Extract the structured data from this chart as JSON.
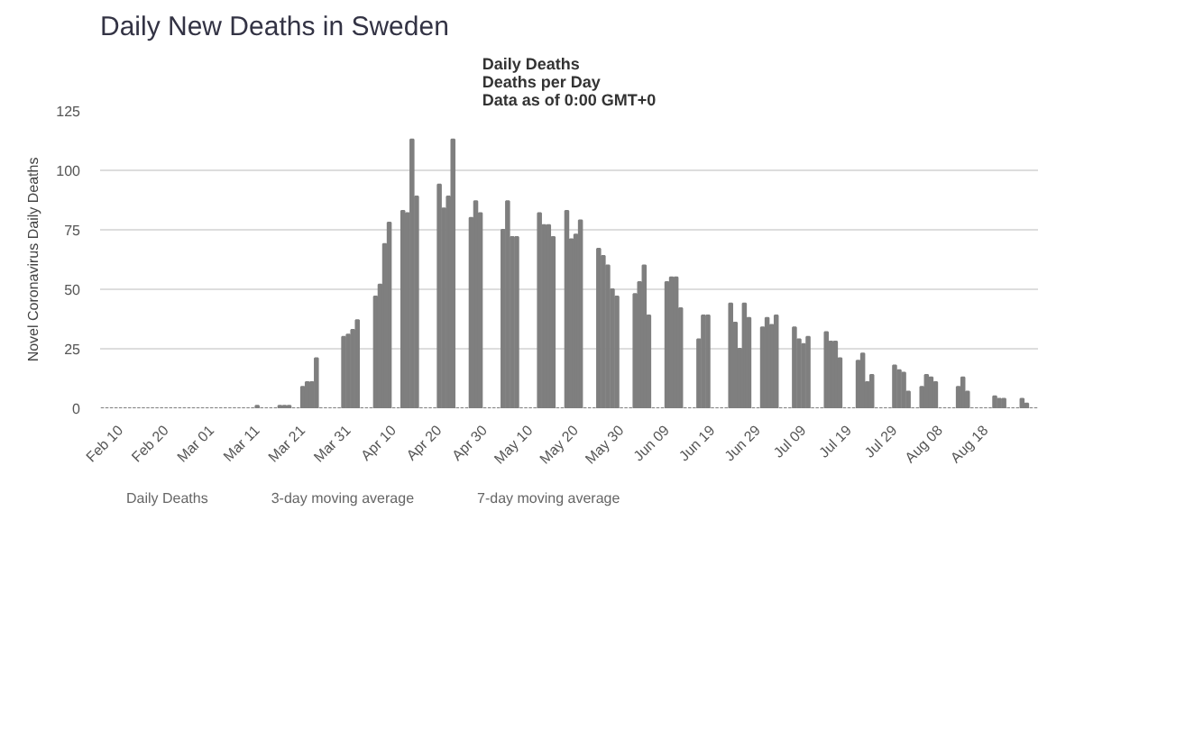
{
  "chart_data": {
    "type": "bar",
    "title": "Daily New Deaths in Sweden",
    "subtitle": "Daily Deaths\nDeaths per Day\nData as of 0:00 GMT+0",
    "ylabel": "Novel Coronavirus Daily Deaths",
    "categories": [
      null,
      null,
      null,
      null,
      "Feb 10",
      null,
      null,
      null,
      null,
      null,
      null,
      null,
      null,
      null,
      "Feb 20",
      null,
      null,
      null,
      null,
      null,
      null,
      null,
      null,
      null,
      "Mar 01",
      null,
      null,
      null,
      null,
      null,
      null,
      null,
      null,
      null,
      "Mar 11",
      null,
      null,
      null,
      null,
      null,
      null,
      null,
      null,
      null,
      "Mar 21",
      null,
      null,
      null,
      null,
      null,
      null,
      null,
      null,
      null,
      "Mar 31",
      null,
      null,
      null,
      null,
      null,
      null,
      null,
      null,
      null,
      "Apr 10",
      null,
      null,
      null,
      null,
      null,
      null,
      null,
      null,
      null,
      "Apr 20",
      null,
      null,
      null,
      null,
      null,
      null,
      null,
      null,
      null,
      "Apr 30",
      null,
      null,
      null,
      null,
      null,
      null,
      null,
      null,
      null,
      "May 10",
      null,
      null,
      null,
      null,
      null,
      null,
      null,
      null,
      null,
      "May 20",
      null,
      null,
      null,
      null,
      null,
      null,
      null,
      null,
      null,
      "May 30",
      null,
      null,
      null,
      null,
      null,
      null,
      null,
      null,
      null,
      "Jun 09",
      null,
      null,
      null,
      null,
      null,
      null,
      null,
      null,
      null,
      "Jun 19",
      null,
      null,
      null,
      null,
      null,
      null,
      null,
      null,
      null,
      "Jun 29",
      null,
      null,
      null,
      null,
      null,
      null,
      null,
      null,
      null,
      "Jul 09",
      null,
      null,
      null,
      null,
      null,
      null,
      null,
      null,
      null,
      "Jul 19",
      null,
      null,
      null,
      null,
      null,
      null,
      null,
      null,
      null,
      "Jul 29",
      null,
      null,
      null,
      null,
      null,
      null,
      null,
      null,
      null,
      "Aug 08",
      null,
      null,
      null,
      null,
      null,
      null,
      null,
      null,
      null,
      "Aug 18",
      null,
      null,
      null,
      null,
      null,
      null,
      null,
      null,
      null,
      null,
      null
    ],
    "series": [
      {
        "name": "Daily Deaths",
        "color": "#7f7f7f",
        "values": [
          0,
          0,
          0,
          0,
          0,
          0,
          0,
          0,
          0,
          0,
          0,
          0,
          0,
          0,
          0,
          0,
          0,
          0,
          0,
          0,
          0,
          0,
          0,
          0,
          0,
          0,
          0,
          0,
          0,
          0,
          0,
          0,
          0,
          0,
          1,
          0,
          0,
          0,
          0,
          1,
          1,
          1,
          0,
          0,
          9,
          11,
          11,
          21,
          0,
          0,
          0,
          0,
          0,
          30,
          31,
          33,
          37,
          0,
          0,
          0,
          47,
          52,
          69,
          78,
          0,
          0,
          83,
          82,
          113,
          89,
          0,
          0,
          0,
          0,
          94,
          84,
          89,
          113,
          0,
          0,
          0,
          80,
          87,
          82,
          0,
          0,
          0,
          0,
          75,
          87,
          72,
          72,
          0,
          0,
          0,
          0,
          82,
          77,
          77,
          72,
          0,
          0,
          83,
          71,
          73,
          79,
          0,
          0,
          0,
          67,
          64,
          60,
          50,
          47,
          0,
          0,
          0,
          48,
          53,
          60,
          39,
          0,
          0,
          0,
          53,
          55,
          55,
          42,
          0,
          0,
          0,
          29,
          39,
          39,
          0,
          0,
          0,
          0,
          44,
          36,
          25,
          44,
          38,
          0,
          0,
          34,
          38,
          35,
          39,
          0,
          0,
          0,
          34,
          29,
          27,
          30,
          0,
          0,
          0,
          32,
          28,
          28,
          21,
          0,
          0,
          0,
          20,
          23,
          11,
          14,
          0,
          0,
          0,
          0,
          18,
          16,
          15,
          7,
          0,
          0,
          9,
          14,
          13,
          11,
          0,
          0,
          0,
          0,
          9,
          13,
          7,
          0,
          0,
          0,
          0,
          0,
          5,
          4,
          4,
          0,
          0,
          0,
          4,
          2,
          0,
          0
        ]
      }
    ],
    "ylim": [
      0,
      125
    ],
    "yticks": [
      0,
      25,
      50,
      75,
      100,
      125
    ],
    "grid": "y",
    "legend": "bottom",
    "annotations": [
      "3-day moving average",
      "7-day moving average"
    ]
  }
}
